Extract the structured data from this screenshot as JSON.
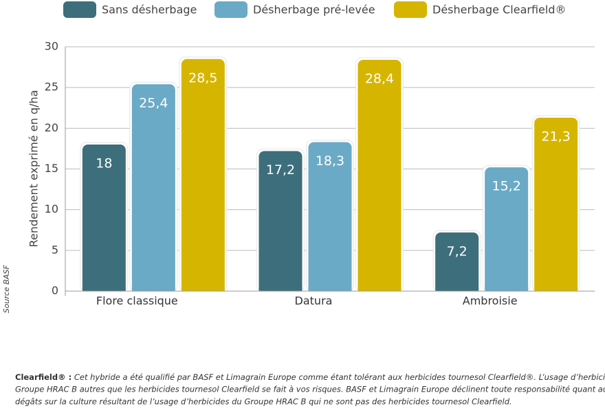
{
  "chart_data": {
    "type": "bar",
    "categories": [
      "Flore classique",
      "Datura",
      "Ambroisie"
    ],
    "series": [
      {
        "name": "Sans désherbage",
        "color": "#3d6e7b",
        "values": [
          18,
          17.2,
          7.2
        ],
        "value_labels": [
          "18",
          "17,2",
          "7,2"
        ]
      },
      {
        "name": "Désherbage pré-levée",
        "color": "#6aaac6",
        "values": [
          25.4,
          18.3,
          15.2
        ],
        "value_labels": [
          "25,4",
          "18,3",
          "15,2"
        ]
      },
      {
        "name": "Désherbage Clearfield®",
        "color": "#d6b500",
        "values": [
          28.5,
          28.4,
          21.3
        ],
        "value_labels": [
          "28,5",
          "28,4",
          "21,3"
        ]
      }
    ],
    "y_label": "Rendement exprimé en q/ha",
    "ylim": [
      0,
      30
    ],
    "yticks": [
      0,
      5,
      10,
      15,
      20,
      25,
      30
    ],
    "grid": true,
    "legend": "top",
    "source": "Source BASF",
    "footnote_label": "Clearfield® :",
    "footnote_lines": [
      " Cet hybride a été qualifié par BASF et Limagrain Europe comme étant tolérant aux herbicides tournesol Clearfield®. L’usage d’herbicides du",
      "Groupe HRAC B autres que les herbicides tournesol Clearfield se fait à vos risques. BASF et Limagrain Europe déclinent toute responsabilité quant aux",
      "dégâts sur la culture résultant de l’usage d’herbicides du Groupe HRAC B qui ne sont pas des herbicides tournesol Clearfield."
    ]
  }
}
